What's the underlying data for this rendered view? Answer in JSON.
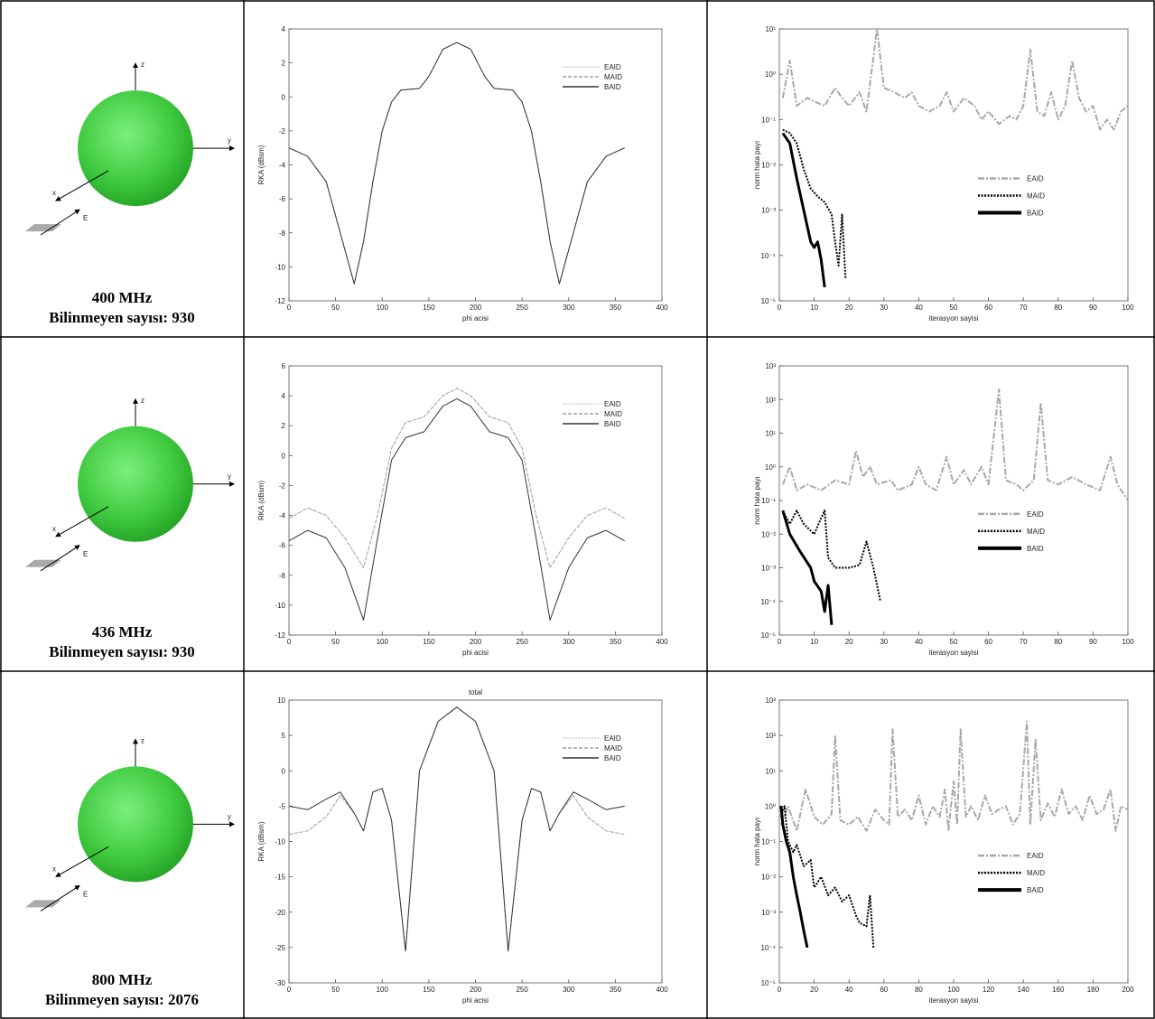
{
  "rows": [
    {
      "caption": [
        "400 MHz",
        "Bilinmeyen sayısı: 930"
      ],
      "axes": [
        "z",
        "y",
        "x",
        "E"
      ]
    },
    {
      "caption": [
        "436 MHz",
        "Bilinmeyen sayısı: 930"
      ],
      "axes": [
        "z",
        "y",
        "x",
        "E"
      ]
    },
    {
      "caption": [
        "800 MHz",
        "Bilinmeyen sayısı: 2076"
      ],
      "axes": [
        "z",
        "y",
        "x",
        "E"
      ]
    }
  ],
  "chart_data": [
    {
      "type": "line",
      "xlabel": "phi acisi",
      "ylabel": "RKA (dBsm)",
      "x": [
        0,
        20,
        40,
        55,
        70,
        80,
        90,
        100,
        110,
        120,
        140,
        150,
        165,
        180,
        195,
        210,
        220,
        240,
        250,
        260,
        270,
        280,
        290,
        305,
        320,
        340,
        360
      ],
      "series": [
        {
          "name": "EAID",
          "color": "#cfcfcf",
          "linestyle": "dotted",
          "values": [
            -3,
            -3.5,
            -5,
            -8,
            -11,
            -8.5,
            -5,
            -2,
            -0.3,
            0.4,
            0.5,
            1.2,
            2.8,
            3.2,
            2.8,
            1.2,
            0.5,
            0.4,
            -0.3,
            -2,
            -5,
            -8.5,
            -11,
            -8,
            -5,
            -3.5,
            -3
          ]
        },
        {
          "name": "MAID",
          "color": "#a0a0a0",
          "linestyle": "dashed",
          "values": [
            -3,
            -3.5,
            -5,
            -8,
            -11,
            -8.5,
            -5,
            -2,
            -0.3,
            0.4,
            0.5,
            1.2,
            2.8,
            3.2,
            2.8,
            1.2,
            0.5,
            0.4,
            -0.3,
            -2,
            -5,
            -8.5,
            -11,
            -8,
            -5,
            -3.5,
            -3
          ]
        },
        {
          "name": "BAID",
          "color": "#333333",
          "linestyle": "solid",
          "values": [
            -3,
            -3.5,
            -5,
            -8,
            -11,
            -8.5,
            -5,
            -2,
            -0.3,
            0.4,
            0.5,
            1.2,
            2.8,
            3.2,
            2.8,
            1.2,
            0.5,
            0.4,
            -0.3,
            -2,
            -5,
            -8.5,
            -11,
            -8,
            -5,
            -3.5,
            -3
          ]
        }
      ],
      "xlim": [
        0,
        400
      ],
      "xticks": [
        0,
        50,
        100,
        150,
        200,
        250,
        300,
        350,
        400
      ],
      "ylim": [
        -12,
        4
      ],
      "yticks": [
        -12,
        -10,
        -8,
        -6,
        -4,
        -2,
        0,
        2,
        4
      ],
      "legend": "upper right"
    },
    {
      "type": "line",
      "log_y": true,
      "xlabel": "iterasyon sayisi",
      "ylabel": "norm hata payı",
      "series": [
        {
          "name": "EAID",
          "color": "#a8a8a8",
          "linestyle": "dashdot",
          "x": [
            1,
            3,
            5,
            8,
            10,
            13,
            16,
            18,
            20,
            23,
            25,
            28,
            30,
            33,
            36,
            38,
            40,
            43,
            46,
            48,
            50,
            53,
            56,
            58,
            60,
            63,
            66,
            68,
            70,
            72,
            74,
            76,
            78,
            80,
            82,
            84,
            86,
            88,
            90,
            92,
            94,
            96,
            98,
            100
          ],
          "values": [
            0.3,
            2,
            0.2,
            0.3,
            0.25,
            0.2,
            0.5,
            0.3,
            0.2,
            0.4,
            0.15,
            10,
            0.5,
            0.4,
            0.3,
            0.4,
            0.2,
            0.15,
            0.2,
            0.4,
            0.15,
            0.3,
            0.2,
            0.1,
            0.15,
            0.08,
            0.12,
            0.1,
            0.2,
            3.5,
            0.15,
            0.12,
            0.4,
            0.1,
            0.2,
            2,
            0.3,
            0.15,
            0.2,
            0.06,
            0.1,
            0.06,
            0.15,
            0.2
          ]
        },
        {
          "name": "MAID",
          "color": "#000000",
          "linestyle": "dotted",
          "x": [
            1,
            3,
            5,
            7,
            9,
            11,
            13,
            15,
            16,
            17,
            18,
            19
          ],
          "values": [
            0.06,
            0.05,
            0.03,
            0.008,
            0.003,
            0.002,
            0.0015,
            0.0008,
            0.0002,
            6e-05,
            0.0008,
            3e-05
          ]
        },
        {
          "name": "BAID",
          "color": "#000000",
          "linestyle": "solid",
          "x": [
            1,
            3,
            5,
            7,
            9,
            10,
            11,
            12,
            13
          ],
          "values": [
            0.05,
            0.03,
            0.005,
            0.001,
            0.0002,
            0.00015,
            0.0002,
            8e-05,
            2e-05
          ]
        }
      ],
      "xlim": [
        0,
        100
      ],
      "xticks": [
        0,
        10,
        20,
        30,
        40,
        50,
        60,
        70,
        80,
        90,
        100
      ],
      "ylim": [
        1e-05,
        10
      ],
      "yticks": [
        {
          "value": 1e-05,
          "label": "10⁻⁵"
        },
        {
          "value": 0.0001,
          "label": "10⁻⁴"
        },
        {
          "value": 0.001,
          "label": "10⁻³"
        },
        {
          "value": 0.01,
          "label": "10⁻²"
        },
        {
          "value": 0.1,
          "label": "10⁻¹"
        },
        {
          "value": 1,
          "label": "10⁰"
        },
        {
          "value": 10,
          "label": "10¹"
        }
      ],
      "legend": "center right"
    },
    {
      "type": "line",
      "xlabel": "phi acisi",
      "ylabel": "RKA (dBsm)",
      "x": [
        0,
        20,
        40,
        60,
        80,
        95,
        110,
        125,
        145,
        165,
        180,
        195,
        215,
        235,
        250,
        265,
        280,
        300,
        320,
        340,
        360
      ],
      "series": [
        {
          "name": "EAID",
          "color": "#cfcfcf",
          "linestyle": "dotted",
          "values": [
            -4.2,
            -3.5,
            -4,
            -5.5,
            -7.5,
            -4,
            0.5,
            2.2,
            2.6,
            4,
            4.5,
            4,
            2.6,
            2.2,
            0.5,
            -4,
            -7.5,
            -5.5,
            -4,
            -3.5,
            -4.2
          ]
        },
        {
          "name": "MAID",
          "color": "#a0a0a0",
          "linestyle": "dashed",
          "values": [
            -4.2,
            -3.5,
            -4,
            -5.5,
            -7.5,
            -4,
            0.5,
            2.2,
            2.6,
            4,
            4.5,
            4,
            2.6,
            2.2,
            0.5,
            -4,
            -7.5,
            -5.5,
            -4,
            -3.5,
            -4.2
          ]
        },
        {
          "name": "BAID",
          "color": "#333333",
          "linestyle": "solid",
          "values": [
            -5.7,
            -5,
            -5.5,
            -7.5,
            -11,
            -5.5,
            -0.3,
            1.2,
            1.6,
            3.3,
            3.8,
            3.3,
            1.6,
            1.2,
            -0.3,
            -5.5,
            -11,
            -7.5,
            -5.5,
            -5,
            -5.7
          ]
        }
      ],
      "xlim": [
        0,
        400
      ],
      "xticks": [
        0,
        50,
        100,
        150,
        200,
        250,
        300,
        350,
        400
      ],
      "ylim": [
        -12,
        6
      ],
      "yticks": [
        -12,
        -10,
        -8,
        -6,
        -4,
        -2,
        0,
        2,
        4,
        6
      ],
      "legend": "upper right"
    },
    {
      "type": "line",
      "log_y": true,
      "xlabel": "iterasyon sayisi",
      "ylabel": "norm hata payı",
      "series": [
        {
          "name": "EAID",
          "color": "#a8a8a8",
          "linestyle": "dashdot",
          "x": [
            1,
            3,
            5,
            8,
            12,
            16,
            20,
            22,
            24,
            26,
            28,
            32,
            34,
            38,
            40,
            42,
            45,
            48,
            50,
            53,
            55,
            58,
            60,
            63,
            65,
            68,
            70,
            73,
            75,
            77,
            80,
            84,
            88,
            92,
            95,
            97,
            100
          ],
          "values": [
            0.3,
            1,
            0.2,
            0.3,
            0.2,
            0.4,
            0.3,
            3,
            0.5,
            1,
            0.3,
            0.4,
            0.2,
            0.3,
            1,
            0.3,
            0.2,
            2,
            0.3,
            0.8,
            0.3,
            1,
            0.3,
            200,
            0.4,
            0.3,
            0.2,
            0.4,
            80,
            0.4,
            0.3,
            0.5,
            0.3,
            0.2,
            2,
            0.3,
            0.1
          ]
        },
        {
          "name": "MAID",
          "color": "#000000",
          "linestyle": "dotted",
          "x": [
            1,
            3,
            5,
            7,
            10,
            12,
            13,
            14,
            16,
            20,
            23,
            25,
            27,
            29
          ],
          "values": [
            0.05,
            0.02,
            0.05,
            0.02,
            0.01,
            0.03,
            0.05,
            0.002,
            0.001,
            0.001,
            0.0012,
            0.006,
            0.001,
            0.0001
          ]
        },
        {
          "name": "BAID",
          "color": "#000000",
          "linestyle": "solid",
          "x": [
            1,
            3,
            6,
            9,
            10,
            12,
            13,
            14,
            15
          ],
          "values": [
            0.05,
            0.01,
            0.003,
            0.001,
            0.0004,
            0.0002,
            5e-05,
            0.0003,
            2e-05
          ]
        }
      ],
      "xlim": [
        0,
        100
      ],
      "xticks": [
        0,
        10,
        20,
        30,
        40,
        50,
        60,
        70,
        80,
        90,
        100
      ],
      "ylim": [
        1e-05,
        1000
      ],
      "yticks": [
        {
          "value": 1e-05,
          "label": "10⁻⁵"
        },
        {
          "value": 0.0001,
          "label": "10⁻⁴"
        },
        {
          "value": 0.001,
          "label": "10⁻³"
        },
        {
          "value": 0.01,
          "label": "10⁻²"
        },
        {
          "value": 0.1,
          "label": "10⁻¹"
        },
        {
          "value": 1,
          "label": "10⁰"
        },
        {
          "value": 10,
          "label": "10¹"
        },
        {
          "value": 100,
          "label": "10²"
        },
        {
          "value": 1000,
          "label": "10³"
        }
      ],
      "legend": "center right"
    },
    {
      "type": "line",
      "title": "total",
      "xlabel": "phi acisi",
      "ylabel": "RKA (dBsm)",
      "x": [
        0,
        20,
        40,
        55,
        70,
        80,
        90,
        100,
        110,
        125,
        140,
        160,
        180,
        200,
        220,
        235,
        250,
        260,
        270,
        280,
        290,
        305,
        320,
        340,
        360
      ],
      "series": [
        {
          "name": "EAID",
          "color": "#cfcfcf",
          "linestyle": "dotted",
          "values": [
            -9,
            -8.5,
            -6.5,
            -3.5,
            -6,
            -8.5,
            -3,
            -2.5,
            -7,
            -25.5,
            0,
            7,
            9,
            7,
            0,
            -25.5,
            -7,
            -2.5,
            -3,
            -8.5,
            -6,
            -3.5,
            -6.5,
            -8.5,
            -9
          ]
        },
        {
          "name": "MAID",
          "color": "#a0a0a0",
          "linestyle": "dashed",
          "values": [
            -9,
            -8.5,
            -6.5,
            -3.5,
            -6,
            -8.5,
            -3,
            -2.5,
            -7,
            -25.5,
            0,
            7,
            9,
            7,
            0,
            -25.5,
            -7,
            -2.5,
            -3,
            -8.5,
            -6,
            -3.5,
            -6.5,
            -8.5,
            -9
          ]
        },
        {
          "name": "BAID",
          "color": "#333333",
          "linestyle": "solid",
          "values": [
            -5,
            -5.5,
            -4,
            -3,
            -6,
            -8.5,
            -3,
            -2.5,
            -7,
            -25.5,
            0,
            7,
            9,
            7,
            0,
            -25.5,
            -7,
            -2.5,
            -3,
            -8.5,
            -6,
            -3,
            -4,
            -5.5,
            -5
          ]
        }
      ],
      "xlim": [
        0,
        400
      ],
      "xticks": [
        0,
        50,
        100,
        150,
        200,
        250,
        300,
        350,
        400
      ],
      "ylim": [
        -30,
        10
      ],
      "yticks": [
        -30,
        -25,
        -20,
        -15,
        -10,
        -5,
        0,
        5,
        10
      ],
      "legend": "upper right"
    },
    {
      "type": "line",
      "log_y": true,
      "xlabel": "iterasyon sayisi",
      "ylabel": "norm hata payı",
      "series": [
        {
          "name": "EAID",
          "color": "#a8a8a8",
          "linestyle": "dashdot",
          "x": [
            1,
            5,
            10,
            15,
            20,
            25,
            30,
            32,
            35,
            40,
            45,
            50,
            55,
            60,
            63,
            65,
            68,
            72,
            76,
            80,
            84,
            88,
            92,
            95,
            97,
            100,
            102,
            104,
            107,
            110,
            114,
            118,
            122,
            126,
            130,
            134,
            138,
            142,
            144,
            147,
            150,
            154,
            158,
            162,
            166,
            170,
            174,
            178,
            182,
            186,
            190,
            193,
            196,
            200
          ],
          "values": [
            0.3,
            1,
            0.2,
            3,
            0.5,
            0.3,
            0.6,
            100,
            0.4,
            0.3,
            0.5,
            0.2,
            0.8,
            0.4,
            0.3,
            150,
            0.5,
            0.8,
            0.4,
            2,
            0.3,
            1,
            0.5,
            3,
            0.2,
            5,
            0.3,
            150,
            0.5,
            1,
            0.4,
            2,
            0.6,
            0.8,
            1,
            0.3,
            0.6,
            250,
            0.3,
            80,
            0.4,
            1.2,
            0.5,
            3,
            0.6,
            1,
            0.4,
            2,
            0.6,
            0.8,
            3,
            0.2,
            1,
            0.8
          ]
        },
        {
          "name": "MAID",
          "color": "#000000",
          "linestyle": "dotted",
          "x": [
            1,
            3,
            5,
            8,
            10,
            14,
            18,
            20,
            24,
            28,
            32,
            36,
            40,
            44,
            46,
            50,
            52,
            54
          ],
          "values": [
            0.5,
            1,
            0.1,
            0.05,
            0.08,
            0.02,
            0.03,
            0.005,
            0.01,
            0.003,
            0.005,
            0.002,
            0.003,
            0.0008,
            0.0005,
            0.0004,
            0.003,
            0.0001
          ]
        },
        {
          "name": "BAID",
          "color": "#000000",
          "linestyle": "solid",
          "x": [
            1,
            2,
            4,
            6,
            8,
            10,
            12,
            14,
            16
          ],
          "values": [
            1,
            0.3,
            0.1,
            0.05,
            0.01,
            0.003,
            0.001,
            0.0003,
            0.0001
          ]
        }
      ],
      "xlim": [
        0,
        200
      ],
      "xticks": [
        0,
        20,
        40,
        60,
        80,
        100,
        120,
        140,
        160,
        180,
        200
      ],
      "ylim": [
        1e-05,
        1000
      ],
      "yticks": [
        {
          "value": 1e-05,
          "label": "10⁻⁵"
        },
        {
          "value": 0.0001,
          "label": "10⁻⁴"
        },
        {
          "value": 0.001,
          "label": "10⁻³"
        },
        {
          "value": 0.01,
          "label": "10⁻²"
        },
        {
          "value": 0.1,
          "label": "10⁻¹"
        },
        {
          "value": 1,
          "label": "10⁰"
        },
        {
          "value": 10,
          "label": "10¹"
        },
        {
          "value": 100,
          "label": "10²"
        },
        {
          "value": 1000,
          "label": "10³"
        }
      ],
      "legend": "center right"
    }
  ]
}
